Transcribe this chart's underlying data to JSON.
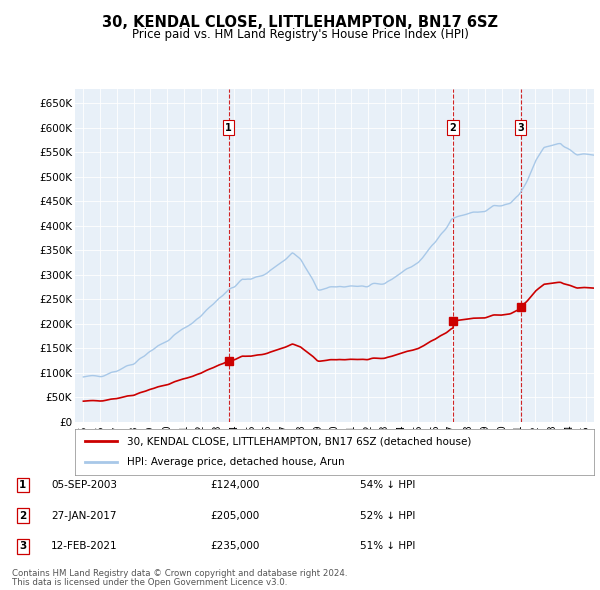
{
  "title": "30, KENDAL CLOSE, LITTLEHAMPTON, BN17 6SZ",
  "subtitle": "Price paid vs. HM Land Registry's House Price Index (HPI)",
  "legend_line1": "30, KENDAL CLOSE, LITTLEHAMPTON, BN17 6SZ (detached house)",
  "legend_line2": "HPI: Average price, detached house, Arun",
  "footnote1": "Contains HM Land Registry data © Crown copyright and database right 2024.",
  "footnote2": "This data is licensed under the Open Government Licence v3.0.",
  "transactions": [
    {
      "label": "1",
      "date": "05-SEP-2003",
      "price": 124000,
      "pct": "54% ↓ HPI",
      "x": 2003.67
    },
    {
      "label": "2",
      "date": "27-JAN-2017",
      "price": 205000,
      "pct": "52% ↓ HPI",
      "x": 2017.07
    },
    {
      "label": "3",
      "date": "12-FEB-2021",
      "price": 235000,
      "pct": "51% ↓ HPI",
      "x": 2021.12
    }
  ],
  "xlim": [
    1994.5,
    2025.5
  ],
  "ylim": [
    0,
    680000
  ],
  "yticks": [
    0,
    50000,
    100000,
    150000,
    200000,
    250000,
    300000,
    350000,
    400000,
    450000,
    500000,
    550000,
    600000,
    650000
  ],
  "ytick_labels": [
    "£0",
    "£50K",
    "£100K",
    "£150K",
    "£200K",
    "£250K",
    "£300K",
    "£350K",
    "£400K",
    "£450K",
    "£500K",
    "£550K",
    "£600K",
    "£650K"
  ],
  "xtick_years": [
    1995,
    1996,
    1997,
    1998,
    1999,
    2000,
    2001,
    2002,
    2003,
    2004,
    2005,
    2006,
    2007,
    2008,
    2009,
    2010,
    2011,
    2012,
    2013,
    2014,
    2015,
    2016,
    2017,
    2018,
    2019,
    2020,
    2021,
    2022,
    2023,
    2024,
    2025
  ],
  "hpi_color": "#A8C8E8",
  "price_color": "#CC0000",
  "vline_color": "#CC0000",
  "background_color": "#E8F0F8",
  "plot_bg_color": "#E8F0F8",
  "marker_color": "#CC0000"
}
